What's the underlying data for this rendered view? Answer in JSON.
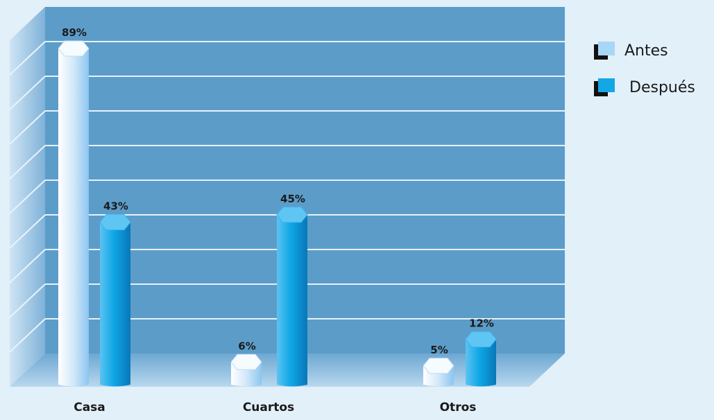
{
  "chart_data": {
    "type": "bar",
    "categories": [
      "Casa",
      "Cuartos",
      "Otros"
    ],
    "series": [
      {
        "name": "Antes",
        "values": [
          89,
          6,
          5
        ],
        "labels": [
          "89%",
          "6%",
          "5%"
        ],
        "color": "#cfe6f8"
      },
      {
        "name": "Después",
        "values": [
          43,
          45,
          12
        ],
        "labels": [
          "43%",
          "45%",
          "12%"
        ],
        "color": "#12a6e6"
      }
    ],
    "ylim": [
      0,
      100
    ],
    "grid": true,
    "legend": "top-right",
    "colors": {
      "background": "#e2f0fa",
      "back_wall": "#5c9cc9",
      "side_wall": "#7fb4da",
      "floor": "#7fb0d5",
      "grid_line": "#e6f2fb",
      "label_text": "#1a1a1a"
    }
  }
}
